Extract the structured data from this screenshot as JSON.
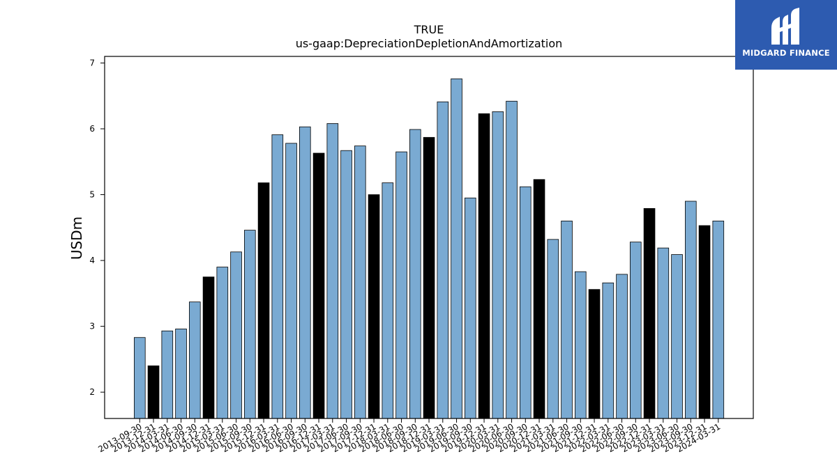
{
  "chart_data": {
    "type": "bar",
    "title": "TRUE",
    "subtitle": "us-gaap:DepreciationDepletionAndAmortization",
    "xlabel": "",
    "ylabel": "USDm",
    "ylim": [
      1.6,
      7.1
    ],
    "yticks": [
      2,
      3,
      4,
      5,
      6,
      7
    ],
    "grid": false,
    "categories": [
      "2013-09-30",
      "2013-12-31",
      "2014-03-31",
      "2014-06-30",
      "2014-09-30",
      "2014-12-31",
      "2015-03-31",
      "2015-06-30",
      "2015-09-30",
      "2015-12-31",
      "2016-03-31",
      "2016-06-30",
      "2016-09-30",
      "2016-12-31",
      "2017-03-31",
      "2017-06-30",
      "2017-09-30",
      "2017-12-31",
      "2018-03-31",
      "2018-06-30",
      "2018-09-30",
      "2018-12-31",
      "2019-03-31",
      "2019-06-30",
      "2019-09-30",
      "2019-12-31",
      "2020-03-31",
      "2020-06-30",
      "2020-09-30",
      "2020-12-31",
      "2021-03-31",
      "2021-06-30",
      "2021-09-30",
      "2021-12-31",
      "2022-03-31",
      "2022-06-30",
      "2022-09-30",
      "2022-12-31",
      "2023-03-31",
      "2023-06-30",
      "2023-09-30",
      "2023-12-31",
      "2024-03-31"
    ],
    "values": [
      2.83,
      2.4,
      2.93,
      2.96,
      3.37,
      3.75,
      3.9,
      4.13,
      4.46,
      5.18,
      5.91,
      5.78,
      6.03,
      5.63,
      6.08,
      5.67,
      5.74,
      5.0,
      5.18,
      5.65,
      5.99,
      5.87,
      6.41,
      6.76,
      4.95,
      6.23,
      6.26,
      6.42,
      5.12,
      5.23,
      4.32,
      4.6,
      3.83,
      3.56,
      3.66,
      3.79,
      4.28,
      4.79,
      4.19,
      4.09,
      4.9,
      4.53,
      4.6
    ],
    "highlight": [
      false,
      true,
      false,
      false,
      false,
      true,
      false,
      false,
      false,
      true,
      false,
      false,
      false,
      true,
      false,
      false,
      false,
      true,
      false,
      false,
      false,
      true,
      false,
      false,
      false,
      true,
      false,
      false,
      false,
      true,
      false,
      false,
      false,
      true,
      false,
      false,
      false,
      true,
      false,
      false,
      false,
      true,
      false
    ],
    "colors": {
      "bar": "#7aaad2",
      "highlight": "#000000",
      "edge": "#000000"
    }
  },
  "logo": {
    "text": "MIDGARD FINANCE",
    "background": "#2d5bb0"
  }
}
